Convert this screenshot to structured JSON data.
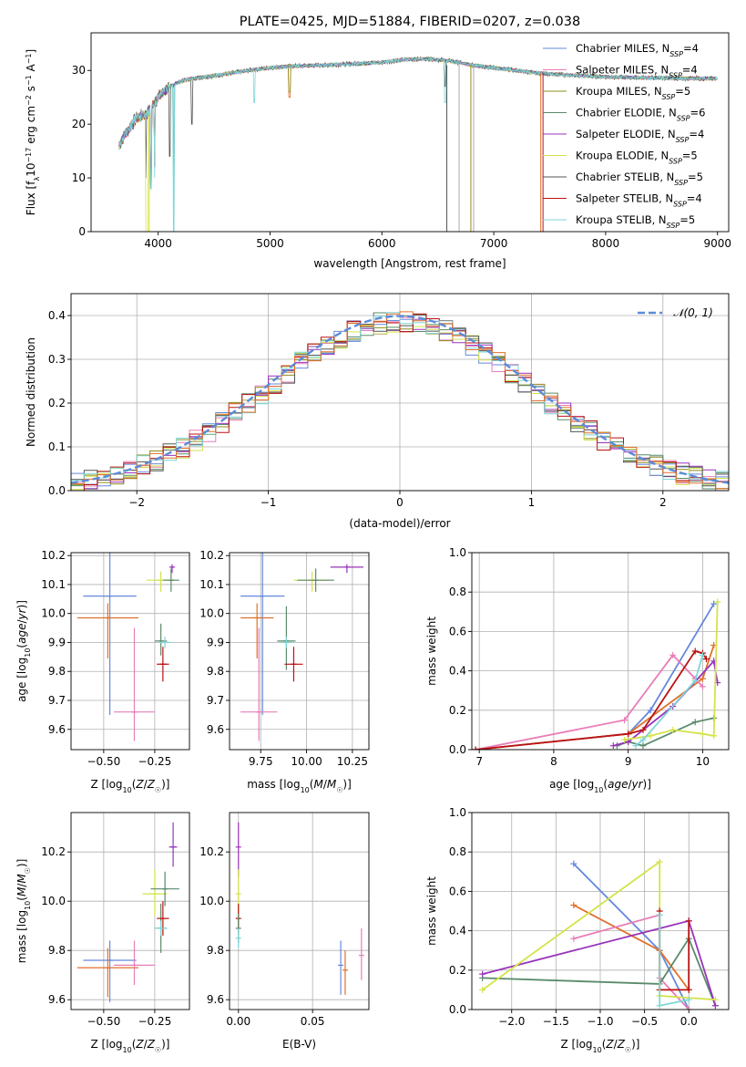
{
  "palette": {
    "chabrier_miles": "#6688dd",
    "salpeter_miles": "#e87db8",
    "kroupa_miles": "#8c8c1a",
    "chabrier_elodie": "#5a8a6a",
    "salpeter_elodie": "#9933bb",
    "kroupa_elodie": "#d4e34a",
    "chabrier_stelib": "#555555",
    "salpeter_stelib": "#bb1111",
    "kroupa_stelib": "#7fd6d6",
    "orange": "#e0702a",
    "normal_curve": "#5b8bd9"
  },
  "chart_data": [
    {
      "id": "spectrum",
      "type": "line",
      "title": "PLATE=0425, MJD=51884, FIBERID=0207, z=0.038",
      "xlabel": "wavelength [Angstrom, rest frame]",
      "ylabel": "Flux [fλ10⁻¹⁷ erg cm⁻² s⁻¹ A⁻¹]",
      "xlim": [
        3400,
        9100
      ],
      "ylim": [
        0,
        37
      ],
      "xticks": [
        4000,
        5000,
        6000,
        7000,
        8000,
        9000
      ],
      "yticks": [
        0,
        10,
        20,
        30
      ],
      "legend_position": "top-right",
      "legend": [
        {
          "label": "Chabrier MILES, N",
          "sub": "SSP",
          "tail": "=4",
          "color_key": "chabrier_miles"
        },
        {
          "label": "Salpeter MILES, N",
          "sub": "SSP",
          "tail": "=4",
          "color_key": "salpeter_miles"
        },
        {
          "label": "Kroupa MILES, N",
          "sub": "SSP",
          "tail": "=5",
          "color_key": "kroupa_miles"
        },
        {
          "label": "Chabrier ELODIE, N",
          "sub": "SSP",
          "tail": "=6",
          "color_key": "chabrier_elodie"
        },
        {
          "label": "Salpeter ELODIE, N",
          "sub": "SSP",
          "tail": "=4",
          "color_key": "salpeter_elodie"
        },
        {
          "label": "Kroupa ELODIE, N",
          "sub": "SSP",
          "tail": "=5",
          "color_key": "kroupa_elodie"
        },
        {
          "label": "Chabrier STELIB, N",
          "sub": "SSP",
          "tail": "=5",
          "color_key": "chabrier_stelib"
        },
        {
          "label": "Salpeter STELIB, N",
          "sub": "SSP",
          "tail": "=4",
          "color_key": "salpeter_stelib"
        },
        {
          "label": "Kroupa STELIB, N",
          "sub": "SSP",
          "tail": "=5",
          "color_key": "kroupa_stelib"
        }
      ],
      "continuum_x": [
        3650,
        3700,
        3800,
        3900,
        4000,
        4100,
        4200,
        4300,
        4500,
        4800,
        5000,
        5200,
        5500,
        5800,
        6000,
        6200,
        6400,
        6600,
        6800,
        7000,
        7200,
        7400,
        7600,
        7800,
        8000,
        8200,
        8500,
        8800,
        9000
      ],
      "continuum_y": [
        16,
        18,
        21,
        22,
        25,
        27,
        28,
        28.5,
        29,
        30,
        30.5,
        30.8,
        31,
        31.3,
        31.5,
        32,
        32.2,
        31.8,
        31,
        30.5,
        30,
        29.5,
        29.2,
        29,
        28.8,
        28.7,
        28.6,
        28.5,
        28.5
      ]
    },
    {
      "id": "residuals",
      "type": "line",
      "xlabel": "(data-model)/error",
      "ylabel": "Normed distribution",
      "xlim": [
        -2.5,
        2.5
      ],
      "ylim": [
        0,
        0.45
      ],
      "xticks": [
        -2,
        -1,
        0,
        1,
        2
      ],
      "yticks": [
        0.0,
        0.1,
        0.2,
        0.3,
        0.4
      ],
      "legend_position": "top-right",
      "legend": [
        {
          "label": "𝒩(0, 1)",
          "color_key": "normal_curve"
        }
      ],
      "grid": true
    },
    {
      "id": "age_vs_Z",
      "type": "scatter",
      "xlabel": "Z [log₁₀(Z/Z☉)]",
      "ylabel": "age  [log₁₀(age/yr)]",
      "xlim": [
        -0.66,
        -0.08
      ],
      "ylim": [
        9.53,
        10.21
      ],
      "xticks": [
        -0.5,
        -0.25
      ],
      "yticks": [
        9.6,
        9.7,
        9.8,
        9.9,
        10.0,
        10.1,
        10.2
      ],
      "grid": true,
      "points": [
        {
          "x": -0.47,
          "y": 10.06,
          "xerr": [
            0.13,
            0.13
          ],
          "yerr": [
            0.41,
            0.42
          ],
          "color_key": "chabrier_miles"
        },
        {
          "x": -0.48,
          "y": 9.985,
          "xerr": [
            0.15,
            0.15
          ],
          "yerr": [
            0.14,
            0.05
          ],
          "color_key": "orange"
        },
        {
          "x": -0.35,
          "y": 9.66,
          "xerr": [
            0.1,
            0.1
          ],
          "yerr": [
            0.1,
            0.29
          ],
          "color_key": "salpeter_miles"
        },
        {
          "x": -0.22,
          "y": 9.905,
          "xerr": [
            0.03,
            0.03
          ],
          "yerr": [
            0.05,
            0.06
          ],
          "color_key": "chabrier_elodie"
        },
        {
          "x": -0.21,
          "y": 9.825,
          "xerr": [
            0.03,
            0.03
          ],
          "yerr": [
            0.06,
            0.06
          ],
          "color_key": "salpeter_stelib"
        },
        {
          "x": -0.22,
          "y": 10.115,
          "xerr": [
            0.07,
            0.07
          ],
          "yerr": [
            0.04,
            0.03
          ],
          "color_key": "kroupa_elodie"
        },
        {
          "x": -0.17,
          "y": 10.115,
          "xerr": [
            0.04,
            0.04
          ],
          "yerr": [
            0.04,
            0.04
          ],
          "color_key": "chabrier_elodie"
        },
        {
          "x": -0.165,
          "y": 10.16,
          "xerr": [
            0.01,
            0.01
          ],
          "yerr": [
            0.02,
            0.01
          ],
          "color_key": "salpeter_elodie"
        },
        {
          "x": -0.2,
          "y": 9.9,
          "xerr": [
            0.03,
            0.03
          ],
          "yerr": [
            0.02,
            0.02
          ],
          "color_key": "kroupa_stelib"
        }
      ]
    },
    {
      "id": "age_vs_mass",
      "type": "scatter",
      "xlabel": "mass [log₁₀(M/M☉)]",
      "ylabel": "",
      "xlim": [
        9.58,
        10.34
      ],
      "ylim": [
        9.53,
        10.21
      ],
      "xticks": [
        9.75,
        10.0,
        10.25
      ],
      "yticks": [
        9.6,
        9.7,
        9.8,
        9.9,
        10.0,
        10.1,
        10.2
      ],
      "grid": true,
      "points": [
        {
          "x": 9.76,
          "y": 10.06,
          "xerr": [
            0.12,
            0.12
          ],
          "yerr": [
            0.41,
            0.42
          ],
          "color_key": "chabrier_miles"
        },
        {
          "x": 9.73,
          "y": 9.985,
          "xerr": [
            0.09,
            0.09
          ],
          "yerr": [
            0.14,
            0.05
          ],
          "color_key": "orange"
        },
        {
          "x": 9.74,
          "y": 9.66,
          "xerr": [
            0.1,
            0.1
          ],
          "yerr": [
            0.1,
            0.29
          ],
          "color_key": "salpeter_miles"
        },
        {
          "x": 9.89,
          "y": 9.905,
          "xerr": [
            0.05,
            0.05
          ],
          "yerr": [
            0.1,
            0.12
          ],
          "color_key": "chabrier_elodie"
        },
        {
          "x": 9.93,
          "y": 9.825,
          "xerr": [
            0.05,
            0.05
          ],
          "yerr": [
            0.06,
            0.06
          ],
          "color_key": "salpeter_stelib"
        },
        {
          "x": 10.03,
          "y": 10.115,
          "xerr": [
            0.1,
            0.1
          ],
          "yerr": [
            0.04,
            0.03
          ],
          "color_key": "kroupa_elodie"
        },
        {
          "x": 10.05,
          "y": 10.115,
          "xerr": [
            0.1,
            0.1
          ],
          "yerr": [
            0.04,
            0.04
          ],
          "color_key": "chabrier_elodie"
        },
        {
          "x": 10.22,
          "y": 10.16,
          "xerr": [
            0.09,
            0.09
          ],
          "yerr": [
            0.02,
            0.01
          ],
          "color_key": "salpeter_elodie"
        },
        {
          "x": 9.89,
          "y": 9.9,
          "xerr": [
            0.03,
            0.03
          ],
          "yerr": [
            0.02,
            0.02
          ],
          "color_key": "kroupa_stelib"
        }
      ]
    },
    {
      "id": "weight_vs_age",
      "type": "line",
      "xlabel": "age  [log₁₀(age/yr)]",
      "ylabel": "mass weight",
      "xlim": [
        6.9,
        10.35
      ],
      "ylim": [
        0,
        1
      ],
      "xticks": [
        7,
        8,
        9,
        10
      ],
      "yticks": [
        0.0,
        0.2,
        0.4,
        0.6,
        0.8,
        1.0
      ],
      "grid": true,
      "series": [
        {
          "color_key": "chabrier_miles",
          "x": [
            6.95,
            9.0,
            9.3,
            10.15
          ],
          "y": [
            0.0,
            0.08,
            0.2,
            0.74
          ]
        },
        {
          "color_key": "orange",
          "x": [
            6.95,
            9.0,
            10.0,
            10.15
          ],
          "y": [
            0.0,
            0.08,
            0.36,
            0.53
          ]
        },
        {
          "color_key": "salpeter_miles",
          "x": [
            6.95,
            8.95,
            9.6,
            9.9,
            10.0
          ],
          "y": [
            0.0,
            0.15,
            0.48,
            0.36,
            0.32
          ]
        },
        {
          "color_key": "chabrier_elodie",
          "x": [
            8.85,
            9.0,
            9.2,
            9.9,
            10.15
          ],
          "y": [
            0.02,
            0.04,
            0.02,
            0.14,
            0.16
          ]
        },
        {
          "color_key": "salpeter_elodie",
          "x": [
            8.8,
            9.0,
            9.6,
            10.15,
            10.2
          ],
          "y": [
            0.02,
            0.04,
            0.22,
            0.45,
            0.34
          ]
        },
        {
          "color_key": "kroupa_elodie",
          "x": [
            8.95,
            9.3,
            9.6,
            10.0,
            10.15,
            10.2
          ],
          "y": [
            0.05,
            0.07,
            0.1,
            0.08,
            0.07,
            0.75
          ]
        },
        {
          "color_key": "salpeter_stelib",
          "x": [
            6.95,
            9.0,
            9.2,
            9.9,
            10.0,
            10.05
          ],
          "y": [
            0.0,
            0.08,
            0.1,
            0.5,
            0.49,
            0.46
          ]
        },
        {
          "color_key": "kroupa_stelib",
          "x": [
            9.1,
            9.2,
            9.9,
            10.0
          ],
          "y": [
            0.02,
            0.05,
            0.35,
            0.48
          ]
        }
      ]
    },
    {
      "id": "mass_vs_Z",
      "type": "scatter",
      "xlabel": "Z [log₁₀(Z/Z☉)]",
      "ylabel": "mass [log₁₀(M/M☉)]",
      "xlim": [
        -0.66,
        -0.08
      ],
      "ylim": [
        9.56,
        10.36
      ],
      "xticks": [
        -0.5,
        -0.25
      ],
      "yticks": [
        9.6,
        9.8,
        10.0,
        10.2
      ],
      "grid": true,
      "points": [
        {
          "x": -0.47,
          "y": 9.76,
          "xerr": [
            0.13,
            0.13
          ],
          "yerr": [
            0.17,
            0.08
          ],
          "color_key": "chabrier_miles"
        },
        {
          "x": -0.48,
          "y": 9.73,
          "xerr": [
            0.15,
            0.15
          ],
          "yerr": [
            0.12,
            0.08
          ],
          "color_key": "orange"
        },
        {
          "x": -0.35,
          "y": 9.74,
          "xerr": [
            0.1,
            0.1
          ],
          "yerr": [
            0.08,
            0.1
          ],
          "color_key": "salpeter_miles"
        },
        {
          "x": -0.22,
          "y": 9.89,
          "xerr": [
            0.03,
            0.03
          ],
          "yerr": [
            0.1,
            0.1
          ],
          "color_key": "chabrier_elodie"
        },
        {
          "x": -0.21,
          "y": 9.93,
          "xerr": [
            0.03,
            0.03
          ],
          "yerr": [
            0.07,
            0.07
          ],
          "color_key": "salpeter_stelib"
        },
        {
          "x": -0.25,
          "y": 10.03,
          "xerr": [
            0.06,
            0.06
          ],
          "yerr": [
            0.09,
            0.1
          ],
          "color_key": "kroupa_elodie"
        },
        {
          "x": -0.2,
          "y": 10.05,
          "xerr": [
            0.07,
            0.07
          ],
          "yerr": [
            0.07,
            0.07
          ],
          "color_key": "chabrier_elodie"
        },
        {
          "x": -0.16,
          "y": 10.22,
          "xerr": [
            0.02,
            0.02
          ],
          "yerr": [
            0.08,
            0.1
          ],
          "color_key": "salpeter_elodie"
        },
        {
          "x": -0.22,
          "y": 9.89,
          "xerr": [
            0.03,
            0.03
          ],
          "yerr": [
            0.03,
            0.03
          ],
          "color_key": "kroupa_stelib"
        }
      ]
    },
    {
      "id": "mass_vs_ebv",
      "type": "scatter",
      "xlabel": "E(B-V)",
      "ylabel": "",
      "xlim": [
        -0.006,
        0.088
      ],
      "ylim": [
        9.56,
        10.36
      ],
      "xticks": [
        0.0,
        0.05
      ],
      "yticks": [
        9.6,
        9.8,
        10.0,
        10.2
      ],
      "grid": true,
      "points": [
        {
          "x": 0.0,
          "y": 10.22,
          "xerr": [
            0,
            0
          ],
          "yerr": [
            0.12,
            0.1
          ],
          "color_key": "salpeter_elodie"
        },
        {
          "x": 0.0,
          "y": 10.03,
          "xerr": [
            0,
            0
          ],
          "yerr": [
            0.1,
            0.1
          ],
          "color_key": "kroupa_elodie"
        },
        {
          "x": 0.0,
          "y": 9.93,
          "xerr": [
            0,
            0
          ],
          "yerr": [
            0.06,
            0.06
          ],
          "color_key": "salpeter_stelib"
        },
        {
          "x": 0.0,
          "y": 9.89,
          "xerr": [
            0,
            0
          ],
          "yerr": [
            0.06,
            0.06
          ],
          "color_key": "chabrier_elodie"
        },
        {
          "x": 0.0,
          "y": 9.85,
          "xerr": [
            0,
            0
          ],
          "yerr": [
            0.04,
            0.04
          ],
          "color_key": "kroupa_stelib"
        },
        {
          "x": 0.069,
          "y": 9.74,
          "xerr": [
            0,
            0
          ],
          "yerr": [
            0.12,
            0.1
          ],
          "color_key": "chabrier_miles"
        },
        {
          "x": 0.072,
          "y": 9.72,
          "xerr": [
            0,
            0
          ],
          "yerr": [
            0.1,
            0.08
          ],
          "color_key": "orange"
        },
        {
          "x": 0.083,
          "y": 9.78,
          "xerr": [
            0,
            0
          ],
          "yerr": [
            0.1,
            0.11
          ],
          "color_key": "salpeter_miles"
        }
      ]
    },
    {
      "id": "weight_vs_Z",
      "type": "line",
      "xlabel": "Z [log₁₀(Z/Z☉)]",
      "ylabel": "mass weight",
      "xlim": [
        -2.45,
        0.45
      ],
      "ylim": [
        0,
        1
      ],
      "xticks": [
        -2.0,
        -1.5,
        -1.0,
        -0.5,
        0.0
      ],
      "yticks": [
        0.0,
        0.2,
        0.4,
        0.6,
        0.8,
        1.0
      ],
      "grid": true,
      "series": [
        {
          "color_key": "chabrier_miles",
          "x": [
            -1.3,
            -0.33,
            0.0
          ],
          "y": [
            0.74,
            0.3,
            0.0
          ]
        },
        {
          "color_key": "orange",
          "x": [
            -1.3,
            -0.33,
            0.0
          ],
          "y": [
            0.53,
            0.3,
            0.1
          ]
        },
        {
          "color_key": "salpeter_miles",
          "x": [
            -1.3,
            -0.33,
            -0.33,
            0.0
          ],
          "y": [
            0.36,
            0.48,
            0.16,
            0.0
          ]
        },
        {
          "color_key": "chabrier_elodie",
          "x": [
            -2.33,
            -0.33,
            0.0,
            0.3
          ],
          "y": [
            0.16,
            0.13,
            0.36,
            0.02
          ]
        },
        {
          "color_key": "salpeter_elodie",
          "x": [
            -2.33,
            0.0,
            0.3
          ],
          "y": [
            0.18,
            0.45,
            0.02
          ]
        },
        {
          "color_key": "kroupa_elodie",
          "x": [
            -2.33,
            -0.33,
            -0.33,
            0.3
          ],
          "y": [
            0.1,
            0.75,
            0.07,
            0.05
          ]
        },
        {
          "color_key": "salpeter_stelib",
          "x": [
            -0.33,
            -0.33,
            0.0,
            0.0
          ],
          "y": [
            0.5,
            0.1,
            0.1,
            0.45
          ]
        },
        {
          "color_key": "kroupa_stelib",
          "x": [
            -0.33,
            -0.33,
            0.0
          ],
          "y": [
            0.48,
            0.02,
            0.05
          ]
        }
      ]
    }
  ]
}
